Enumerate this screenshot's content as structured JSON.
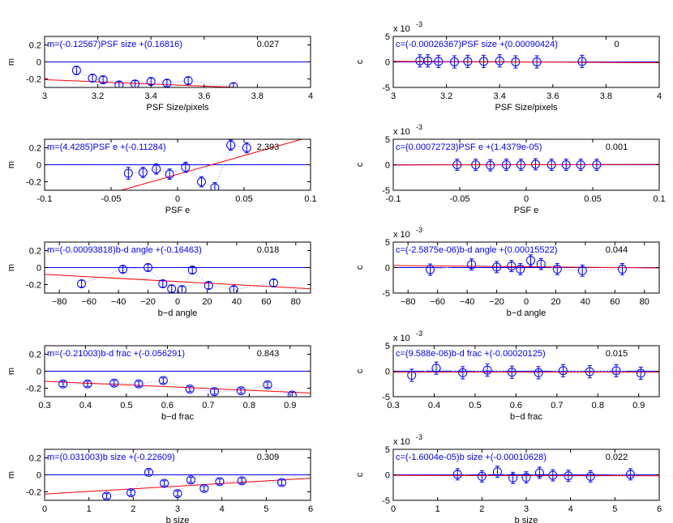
{
  "colors": {
    "data": "#0000ff",
    "fit": "#ff0000",
    "zero": "#0000ff",
    "axis": "#000000",
    "conn": "#b8b8f0",
    "annot": "#0000ff"
  },
  "chart_data": [
    {
      "type": "scatter",
      "xlabel": "PSF Size/pixels",
      "ylabel": "m",
      "xlim": [
        3,
        4
      ],
      "ylim": [
        -0.3,
        0.3
      ],
      "xticks": [
        "3",
        "3.2",
        "3.4",
        "3.6",
        "3.8",
        "4"
      ],
      "xtick_values": [
        3,
        3.2,
        3.4,
        3.6,
        3.8,
        4
      ],
      "yticks": [
        "-0.2",
        "0",
        "0.2"
      ],
      "ytick_values": [
        -0.2,
        0,
        0.2
      ],
      "exponent_label": "",
      "equation": "m=(-0.12567)PSF size +(0.16816)",
      "value_label": "0.027",
      "fit": {
        "slope": -0.12567,
        "intercept": 0.16816
      },
      "x": [
        3.12,
        3.18,
        3.22,
        3.28,
        3.34,
        3.4,
        3.46,
        3.54,
        3.71
      ],
      "y": [
        -0.1,
        -0.19,
        -0.21,
        -0.27,
        -0.26,
        -0.23,
        -0.25,
        -0.22,
        -0.29
      ],
      "err": [
        0.05,
        0.04,
        0.04,
        0.04,
        0.04,
        0.04,
        0.04,
        0.04,
        0.04
      ]
    },
    {
      "type": "scatter",
      "xlabel": "PSF Size/pixels",
      "ylabel": "c",
      "xlim": [
        3,
        4
      ],
      "ylim": [
        -5,
        5
      ],
      "xticks": [
        "3",
        "3.2",
        "3.4",
        "3.6",
        "3.8",
        "4"
      ],
      "xtick_values": [
        3,
        3.2,
        3.4,
        3.6,
        3.8,
        4
      ],
      "yticks": [
        "-5",
        "0",
        "5"
      ],
      "ytick_values": [
        -5,
        0,
        5
      ],
      "exponent_label": "x 10",
      "exponent_power": "-3",
      "equation": "c=(-0.00026367)PSF size +(0.00090424)",
      "value_label": "0",
      "fit": {
        "slope": -0.26367,
        "intercept": 0.90424
      },
      "x": [
        3.1,
        3.13,
        3.17,
        3.23,
        3.28,
        3.34,
        3.4,
        3.46,
        3.54,
        3.71
      ],
      "y": [
        0.2,
        0.2,
        0.1,
        0.0,
        0.1,
        0.1,
        0.2,
        0.0,
        0.0,
        0.1
      ],
      "err": [
        1.2,
        1.2,
        1.2,
        1.2,
        1.2,
        1.2,
        1.2,
        1.2,
        1.2,
        1.2
      ]
    },
    {
      "type": "scatter",
      "xlabel": "PSF e",
      "ylabel": "m",
      "xlim": [
        -0.1,
        0.1
      ],
      "ylim": [
        -0.3,
        0.3
      ],
      "xticks": [
        "-0.1",
        "-0.05",
        "0",
        "0.05",
        "0.1"
      ],
      "xtick_values": [
        -0.1,
        -0.05,
        0,
        0.05,
        0.1
      ],
      "yticks": [
        "-0.2",
        "0",
        "0.2"
      ],
      "ytick_values": [
        -0.2,
        0,
        0.2
      ],
      "exponent_label": "",
      "equation": "m=(4.4285)PSF e +(-0.11284)",
      "value_label": "2.393",
      "fit": {
        "slope": 4.4285,
        "intercept": -0.11284
      },
      "x": [
        -0.037,
        -0.026,
        -0.016,
        -0.006,
        0.006,
        0.018,
        0.028,
        0.04,
        0.052
      ],
      "y": [
        -0.1,
        -0.09,
        -0.05,
        -0.11,
        -0.03,
        -0.2,
        -0.27,
        0.23,
        0.2
      ],
      "err": [
        0.07,
        0.06,
        0.06,
        0.06,
        0.06,
        0.06,
        0.06,
        0.06,
        0.06
      ]
    },
    {
      "type": "scatter",
      "xlabel": "PSF e",
      "ylabel": "c",
      "xlim": [
        -0.1,
        0.1
      ],
      "ylim": [
        -5,
        5
      ],
      "xticks": [
        "-0.1",
        "-0.05",
        "0",
        "0.05",
        "0.1"
      ],
      "xtick_values": [
        -0.1,
        -0.05,
        0,
        0.05,
        0.1
      ],
      "yticks": [
        "-5",
        "0",
        "5"
      ],
      "ytick_values": [
        -5,
        0,
        5
      ],
      "exponent_label": "x 10",
      "exponent_power": "-3",
      "equation": "c=(0.00072723)PSF e +(1.4379e-05)",
      "value_label": "0.001",
      "fit": {
        "slope": 0.72723,
        "intercept": 0.014379
      },
      "x": [
        -0.052,
        -0.038,
        -0.027,
        -0.015,
        -0.004,
        0.007,
        0.019,
        0.03,
        0.041,
        0.053
      ],
      "y": [
        0.0,
        0.0,
        -0.1,
        0.0,
        0.0,
        0.1,
        0.0,
        0.0,
        0.0,
        0.0
      ],
      "err": [
        1.1,
        1.1,
        1.1,
        1.1,
        1.1,
        1.1,
        1.1,
        1.1,
        1.1,
        1.1
      ]
    },
    {
      "type": "scatter",
      "xlabel": "b−d angle",
      "ylabel": "m",
      "xlim": [
        -90,
        90
      ],
      "ylim": [
        -0.3,
        0.3
      ],
      "xticks": [
        "−80",
        "−60",
        "−40",
        "−20",
        "0",
        "20",
        "40",
        "60",
        "80"
      ],
      "xtick_values": [
        -80,
        -60,
        -40,
        -20,
        0,
        20,
        40,
        60,
        80
      ],
      "yticks": [
        "-0.2",
        "0",
        "0.2"
      ],
      "ytick_values": [
        -0.2,
        0,
        0.2
      ],
      "exponent_label": "",
      "equation": "m=(-0.00093818)b-d angle +(-0.16463)",
      "value_label": "0.018",
      "fit": {
        "slope": -0.00093818,
        "intercept": -0.16463
      },
      "x": [
        -65,
        -37,
        -20,
        -10,
        -4,
        3,
        10,
        21,
        38,
        65
      ],
      "y": [
        -0.19,
        -0.02,
        0.0,
        -0.19,
        -0.25,
        -0.26,
        -0.03,
        -0.21,
        -0.26,
        -0.18
      ],
      "err": [
        0.04,
        0.04,
        0.04,
        0.04,
        0.04,
        0.04,
        0.04,
        0.04,
        0.04,
        0.04
      ]
    },
    {
      "type": "scatter",
      "xlabel": "b−d angle",
      "ylabel": "c",
      "xlim": [
        -90,
        90
      ],
      "ylim": [
        -5,
        5
      ],
      "xticks": [
        "−80",
        "−60",
        "−40",
        "−20",
        "0",
        "20",
        "40",
        "60",
        "80"
      ],
      "xtick_values": [
        -80,
        -60,
        -40,
        -20,
        0,
        20,
        40,
        60,
        80
      ],
      "yticks": [
        "-5",
        "0",
        "5"
      ],
      "ytick_values": [
        -5,
        0,
        5
      ],
      "exponent_label": "x 10",
      "exponent_power": "-3",
      "equation": "c=(-2.5875e-06)b-d angle +(0.00015522)",
      "value_label": "0.044",
      "fit": {
        "slope": -0.0025875,
        "intercept": 0.15522
      },
      "x": [
        -65,
        -37,
        -20,
        -10,
        -4,
        3,
        10,
        21,
        38,
        65
      ],
      "y": [
        -0.4,
        0.6,
        0.1,
        0.3,
        -0.3,
        1.4,
        0.7,
        -0.3,
        -0.6,
        -0.3
      ],
      "err": [
        1.1,
        1.1,
        1.1,
        1.1,
        1.1,
        1.1,
        1.1,
        1.1,
        1.1,
        1.1
      ]
    },
    {
      "type": "scatter",
      "xlabel": "b−d frac",
      "ylabel": "m",
      "xlim": [
        0.3,
        0.95
      ],
      "ylim": [
        -0.3,
        0.3
      ],
      "xticks": [
        "0.3",
        "0.4",
        "0.5",
        "0.6",
        "0.7",
        "0.8",
        "0.9"
      ],
      "xtick_values": [
        0.3,
        0.4,
        0.5,
        0.6,
        0.7,
        0.8,
        0.9
      ],
      "yticks": [
        "-0.2",
        "0",
        "0.2"
      ],
      "ytick_values": [
        -0.2,
        0,
        0.2
      ],
      "exponent_label": "",
      "equation": "m=(-0.21003)b-d frac +(-0.056291)",
      "value_label": "0.843",
      "fit": {
        "slope": -0.21003,
        "intercept": -0.056291
      },
      "x": [
        0.345,
        0.405,
        0.47,
        0.53,
        0.59,
        0.655,
        0.715,
        0.78,
        0.845,
        0.905
      ],
      "y": [
        -0.15,
        -0.15,
        -0.14,
        -0.15,
        -0.11,
        -0.21,
        -0.24,
        -0.23,
        -0.16,
        -0.28
      ],
      "err": [
        0.03,
        0.03,
        0.03,
        0.03,
        0.03,
        0.03,
        0.03,
        0.03,
        0.03,
        0.03
      ]
    },
    {
      "type": "scatter",
      "xlabel": "b−d frac",
      "ylabel": "c",
      "xlim": [
        0.3,
        0.95
      ],
      "ylim": [
        -5,
        5
      ],
      "xticks": [
        "0.3",
        "0.4",
        "0.5",
        "0.6",
        "0.7",
        "0.8",
        "0.9"
      ],
      "xtick_values": [
        0.3,
        0.4,
        0.5,
        0.6,
        0.7,
        0.8,
        0.9
      ],
      "yticks": [
        "-5",
        "0",
        "5"
      ],
      "ytick_values": [
        -5,
        0,
        5
      ],
      "exponent_label": "x 10",
      "exponent_power": "-3",
      "equation": "c=(9.588e-06)b-d frac +(-0.00020125)",
      "value_label": "0.015",
      "fit": {
        "slope": 0.009588,
        "intercept": -0.20125
      },
      "x": [
        0.345,
        0.405,
        0.47,
        0.53,
        0.59,
        0.655,
        0.715,
        0.78,
        0.845,
        0.905
      ],
      "y": [
        -0.8,
        0.6,
        -0.3,
        0.2,
        -0.2,
        -0.3,
        0.1,
        -0.1,
        0.1,
        -0.4
      ],
      "err": [
        1.2,
        1.2,
        1.2,
        1.2,
        1.2,
        1.2,
        1.2,
        1.2,
        1.2,
        1.2
      ]
    },
    {
      "type": "scatter",
      "xlabel": "b size",
      "ylabel": "m",
      "xlim": [
        0,
        6
      ],
      "ylim": [
        -0.3,
        0.3
      ],
      "xticks": [
        "0",
        "1",
        "2",
        "3",
        "4",
        "5",
        "6"
      ],
      "xtick_values": [
        0,
        1,
        2,
        3,
        4,
        5,
        6
      ],
      "yticks": [
        "-0.2",
        "0",
        "0.2"
      ],
      "ytick_values": [
        -0.2,
        0,
        0.2
      ],
      "exponent_label": "",
      "equation": "m=(0.031003)b size +(-0.22609)",
      "value_label": "0.309",
      "fit": {
        "slope": 0.031003,
        "intercept": -0.22609
      },
      "x": [
        1.4,
        1.95,
        2.35,
        2.7,
        3.0,
        3.3,
        3.6,
        3.95,
        4.45,
        5.35
      ],
      "y": [
        -0.25,
        -0.21,
        0.03,
        -0.1,
        -0.22,
        -0.06,
        -0.16,
        -0.08,
        -0.07,
        -0.09
      ],
      "err": [
        0.03,
        0.03,
        0.03,
        0.03,
        0.03,
        0.03,
        0.03,
        0.03,
        0.03,
        0.03
      ]
    },
    {
      "type": "scatter",
      "xlabel": "b size",
      "ylabel": "c",
      "xlim": [
        0,
        6
      ],
      "ylim": [
        -5,
        5
      ],
      "xticks": [
        "0",
        "1",
        "2",
        "3",
        "4",
        "5",
        "6"
      ],
      "xtick_values": [
        0,
        1,
        2,
        3,
        4,
        5,
        6
      ],
      "yticks": [
        "-5",
        "0",
        "5"
      ],
      "ytick_values": [
        -5,
        0,
        5
      ],
      "exponent_label": "x 10",
      "exponent_power": "-3",
      "equation": "c=(-1.6004e-05)b size +(-0.00010628)",
      "value_label": "0.022",
      "fit": {
        "slope": -0.016004,
        "intercept": -0.10628
      },
      "x": [
        1.45,
        2.0,
        2.35,
        2.7,
        3.0,
        3.3,
        3.6,
        3.95,
        4.45,
        5.35
      ],
      "y": [
        0.1,
        -0.3,
        0.6,
        -0.6,
        -0.5,
        0.4,
        -0.1,
        -0.2,
        -0.3,
        0.1
      ],
      "err": [
        1.1,
        1.1,
        1.1,
        1.1,
        1.1,
        1.1,
        1.1,
        1.1,
        1.1,
        1.1
      ]
    }
  ]
}
